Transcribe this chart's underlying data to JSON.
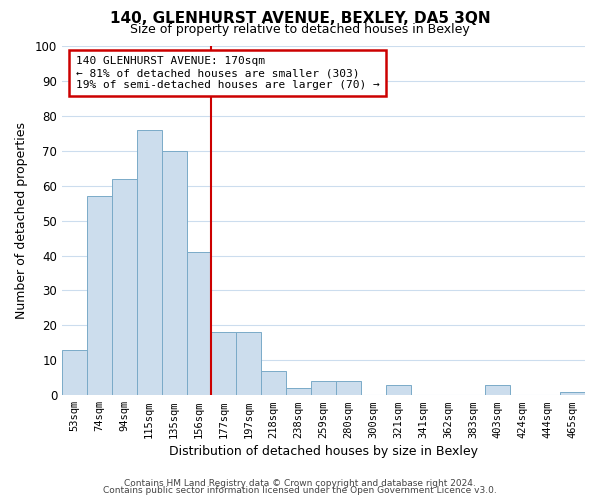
{
  "title": "140, GLENHURST AVENUE, BEXLEY, DA5 3QN",
  "subtitle": "Size of property relative to detached houses in Bexley",
  "xlabel": "Distribution of detached houses by size in Bexley",
  "ylabel": "Number of detached properties",
  "bar_color": "#ccdded",
  "bar_edge_color": "#7aaac8",
  "categories": [
    "53sqm",
    "74sqm",
    "94sqm",
    "115sqm",
    "135sqm",
    "156sqm",
    "177sqm",
    "197sqm",
    "218sqm",
    "238sqm",
    "259sqm",
    "280sqm",
    "300sqm",
    "321sqm",
    "341sqm",
    "362sqm",
    "383sqm",
    "403sqm",
    "424sqm",
    "444sqm",
    "465sqm"
  ],
  "values": [
    13,
    57,
    62,
    76,
    70,
    41,
    18,
    18,
    7,
    2,
    4,
    4,
    0,
    3,
    0,
    0,
    0,
    3,
    0,
    0,
    1
  ],
  "ylim": [
    0,
    100
  ],
  "vline_x": 6.0,
  "vline_color": "#cc0000",
  "annotation_text_line1": "140 GLENHURST AVENUE: 170sqm",
  "annotation_text_line2": "← 81% of detached houses are smaller (303)",
  "annotation_text_line3": "19% of semi-detached houses are larger (70) →",
  "footer_line1": "Contains HM Land Registry data © Crown copyright and database right 2024.",
  "footer_line2": "Contains public sector information licensed under the Open Government Licence v3.0.",
  "grid_color": "#ccddee",
  "background_color": "#ffffff"
}
